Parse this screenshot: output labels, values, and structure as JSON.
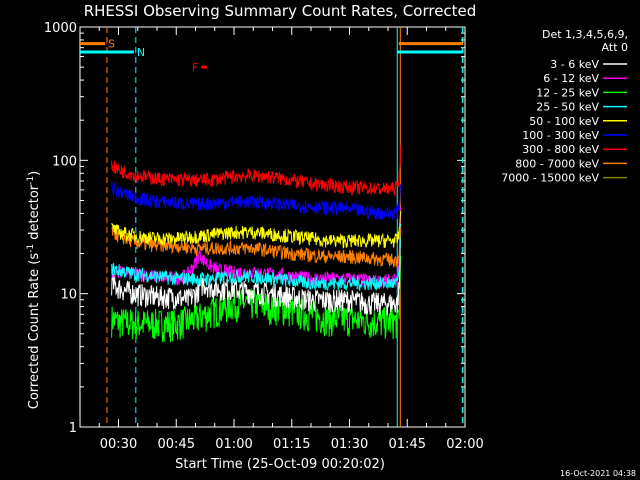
{
  "chart_data": {
    "type": "line",
    "title": "RHESSI Observing Summary Count Rates, Corrected",
    "xlabel": "Start Time (25-Oct-09 00:20:02)",
    "ylabel": "Corrected Count Rate (s⁻¹ detector⁻¹)",
    "yscale": "log",
    "ylim": [
      1,
      1000
    ],
    "y_ticks": [
      1,
      10,
      100,
      1000
    ],
    "y_tick_labels": [
      "1",
      "10",
      "100",
      "1000"
    ],
    "xlim_minutes": [
      20,
      120
    ],
    "x_ticks_minutes": [
      30,
      45,
      60,
      75,
      90,
      105,
      120
    ],
    "x_tick_labels": [
      "00:30",
      "00:45",
      "01:00",
      "01:15",
      "01:30",
      "01:45",
      "02:00"
    ],
    "legend_header": [
      "Det 1,3,4,5,6,9,",
      "Att 0"
    ],
    "legend_placement": "right",
    "footer_date": "16-Oct-2021 04:38",
    "series": [
      {
        "name": "3 - 6 keV",
        "color": "#ffffff",
        "x": [
          28.2,
          29,
          32,
          35,
          40,
          45,
          48,
          50,
          52,
          55,
          60,
          62,
          65,
          70,
          75,
          80,
          85,
          90,
          95,
          100,
          102.5,
          103,
          103.3
        ],
        "y": [
          12,
          11.5,
          10.5,
          10,
          9.5,
          9.5,
          9,
          10,
          12,
          11,
          11,
          10.5,
          10.5,
          10,
          9.5,
          9,
          9,
          9,
          8.5,
          8.5,
          8.5,
          12,
          30
        ]
      },
      {
        "name": "6 - 12 keV",
        "color": "#ff00ff",
        "x": [
          28.2,
          30,
          35,
          40,
          45,
          48,
          50,
          51,
          52,
          54,
          56,
          60,
          65,
          70,
          75,
          80,
          85,
          90,
          95,
          100,
          102.5,
          103,
          103.3
        ],
        "y": [
          15,
          14.5,
          14,
          13.5,
          13,
          14,
          17,
          20,
          18,
          16,
          15,
          14.5,
          14.5,
          14,
          13.5,
          13,
          13,
          13,
          12.5,
          12.5,
          12.5,
          20,
          40
        ]
      },
      {
        "name": "12 - 25 keV",
        "color": "#00ff00",
        "x": [
          28.2,
          30,
          35,
          40,
          45,
          50,
          55,
          60,
          65,
          70,
          75,
          80,
          85,
          90,
          95,
          100,
          102.5,
          103,
          103.3
        ],
        "y": [
          6.5,
          6.2,
          6,
          6,
          6,
          6.5,
          7.5,
          8.5,
          8.5,
          8,
          7.5,
          7,
          6.5,
          6.5,
          6.2,
          6.2,
          6.2,
          8,
          20
        ]
      },
      {
        "name": "25 - 50 keV",
        "color": "#00ffff",
        "x": [
          28.2,
          30,
          35,
          40,
          45,
          50,
          55,
          60,
          65,
          70,
          75,
          80,
          85,
          90,
          95,
          100,
          102.5,
          103,
          103.3
        ],
        "y": [
          15.5,
          15,
          14,
          13.5,
          13,
          13,
          13,
          13.5,
          13.5,
          13,
          12.5,
          12,
          12,
          12,
          12,
          12,
          12,
          16,
          30
        ]
      },
      {
        "name": "50 - 100 keV",
        "color": "#ffff00",
        "x": [
          28.2,
          30,
          35,
          40,
          45,
          50,
          55,
          60,
          65,
          70,
          75,
          80,
          85,
          90,
          95,
          100,
          102.5,
          103,
          103.3
        ],
        "y": [
          31,
          29,
          27,
          26,
          26,
          27,
          28,
          29,
          29,
          28,
          27,
          26,
          25,
          25,
          25,
          25,
          25,
          30,
          45
        ]
      },
      {
        "name": "100 - 300 keV",
        "color": "#0000ff",
        "x": [
          28.2,
          30,
          35,
          40,
          45,
          50,
          55,
          60,
          65,
          70,
          75,
          80,
          85,
          90,
          95,
          100,
          102.5,
          103,
          103.3
        ],
        "y": [
          63,
          58,
          52,
          49,
          48,
          47,
          48,
          49,
          49,
          48,
          46,
          45,
          44,
          43,
          41,
          40,
          41,
          50,
          70
        ]
      },
      {
        "name": "300 - 800 keV",
        "color": "#ff0000",
        "x": [
          28.2,
          30,
          35,
          40,
          45,
          50,
          55,
          60,
          65,
          70,
          75,
          80,
          85,
          90,
          95,
          100,
          102.5,
          103,
          103.3
        ],
        "y": [
          92,
          85,
          77,
          73,
          72,
          71,
          72,
          76,
          77,
          75,
          71,
          67,
          65,
          63,
          62,
          61,
          63,
          80,
          130
        ]
      },
      {
        "name": "800 - 7000 keV",
        "color": "#ff8000",
        "x": [
          28.2,
          30,
          35,
          40,
          45,
          50,
          55,
          60,
          65,
          70,
          75,
          80,
          85,
          90,
          95,
          100,
          102.5,
          103,
          103.3
        ],
        "y": [
          30,
          27,
          24,
          23,
          23,
          22,
          22,
          22,
          22,
          21,
          20,
          19.5,
          19,
          19,
          18.5,
          18,
          18,
          22,
          35
        ]
      },
      {
        "name": "7000 - 15000 keV",
        "color": "#808000",
        "x": [],
        "y": []
      }
    ],
    "flags": [
      {
        "label": "S",
        "color": "#ff8000",
        "x_start": 20,
        "x_end": 26.5,
        "level": 750
      },
      {
        "label": "N",
        "color": "#00ffff",
        "x_start": 20,
        "x_end": 34,
        "level": 650
      },
      {
        "label": "F",
        "color": "#ff0000",
        "x_start": 51.5,
        "x_end": 53,
        "level": 500
      },
      {
        "label": "",
        "color": "#ff8000",
        "x_start": 102.8,
        "x_end": 119.5,
        "level": 750
      },
      {
        "label": "",
        "color": "#00ffff",
        "x_start": 102.4,
        "x_end": 119.5,
        "level": 650
      }
    ],
    "vlines": [
      {
        "x": 27,
        "color": "#ff8000",
        "style": "dashed"
      },
      {
        "x": 34.5,
        "color": "#00ffff",
        "style": "dashed"
      },
      {
        "x": 102.4,
        "color": "#00ffff",
        "style": "solid"
      },
      {
        "x": 103.2,
        "color": "#ff8000",
        "style": "solid"
      },
      {
        "x": 119.5,
        "color": "#ff8000",
        "style": "dashed"
      },
      {
        "x": 119.3,
        "color": "#00ffff",
        "style": "dashed"
      }
    ]
  }
}
